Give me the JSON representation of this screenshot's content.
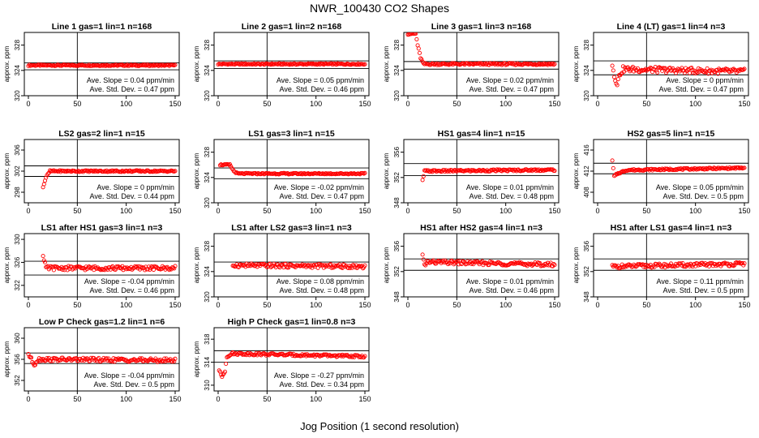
{
  "page": {
    "title": "NWR_100430  CO2 Shapes",
    "xlabel": "Jog Position (1 second resolution)"
  },
  "chart_data": [
    {
      "type": "scatter",
      "title": "Line 1 gas=1 lin=1 n=168",
      "ylabel": "approx. ppm",
      "xlim": [
        0,
        150
      ],
      "ylim": [
        320,
        330
      ],
      "yticks": [
        320,
        324,
        328
      ],
      "xticks": [
        0,
        50,
        100,
        150
      ],
      "hlines": [
        325.2,
        324.1
      ],
      "vline": 50,
      "slope_text": "Ave. Slope = 0.04 ppm/min",
      "std_text": "Ave. Std. Dev. = 0.47 ppm",
      "trace": [
        [
          0,
          324.8
        ],
        [
          150,
          324.8
        ]
      ],
      "start": 0,
      "noise": 0.1
    },
    {
      "type": "scatter",
      "title": "Line 2 gas=1 lin=2 n=168",
      "ylabel": "approx. ppm",
      "xlim": [
        0,
        150
      ],
      "ylim": [
        320,
        330
      ],
      "yticks": [
        320,
        324,
        328
      ],
      "xticks": [
        0,
        50,
        100,
        150
      ],
      "hlines": [
        325.5,
        324.3
      ],
      "vline": 50,
      "slope_text": "Ave. Slope = 0.05 ppm/min",
      "std_text": "Ave. Std. Dev. = 0.46 ppm",
      "trace": [
        [
          0,
          325.0
        ],
        [
          150,
          325.0
        ]
      ],
      "start": 0,
      "noise": 0.1
    },
    {
      "type": "scatter",
      "title": "Line 3 gas=1 lin=3 n=168",
      "ylabel": "approx. ppm",
      "xlim": [
        0,
        150
      ],
      "ylim": [
        320,
        330
      ],
      "yticks": [
        320,
        324,
        328
      ],
      "xticks": [
        0,
        50,
        100,
        150
      ],
      "hlines": [
        325.4,
        324.2
      ],
      "vline": 50,
      "slope_text": "Ave. Slope = 0.02 ppm/min",
      "std_text": "Ave. Std. Dev. = 0.47 ppm",
      "trace": [
        [
          0,
          329.8
        ],
        [
          8,
          329.8
        ],
        [
          10,
          328.0
        ],
        [
          13,
          326.0
        ],
        [
          16,
          325.0
        ],
        [
          150,
          325.0
        ]
      ],
      "start": 0,
      "noise": 0.15
    },
    {
      "type": "scatter",
      "title": "Line 4 (LT) gas=1 lin=4 n=3",
      "ylabel": "approx. ppm",
      "xlim": [
        0,
        150
      ],
      "ylim": [
        320,
        330
      ],
      "yticks": [
        320,
        324,
        328
      ],
      "xticks": [
        0,
        50,
        100,
        150
      ],
      "hlines": [
        325.5,
        323.3
      ],
      "vline": 50,
      "slope_text": "Ave. Slope = 0 ppm/min",
      "std_text": "Ave. Std. Dev. = 0.47 ppm",
      "trace": [
        [
          15,
          325.0
        ],
        [
          17,
          323.0
        ],
        [
          20,
          322.0
        ],
        [
          23,
          323.5
        ],
        [
          26,
          324.2
        ],
        [
          150,
          323.8
        ]
      ],
      "start": 15,
      "noise": 0.45
    },
    {
      "type": "scatter",
      "title": "LS2 gas=2 lin=1 n=15",
      "ylabel": "approx. ppm",
      "xlim": [
        0,
        150
      ],
      "ylim": [
        296,
        308
      ],
      "yticks": [
        298,
        302,
        306
      ],
      "xticks": [
        0,
        50,
        100,
        150
      ],
      "hlines": [
        303.0,
        301.0
      ],
      "vline": 50,
      "slope_text": "Ave. Slope = 0 ppm/min",
      "std_text": "Ave. Std. Dev. = 0.44 ppm",
      "trace": [
        [
          15,
          299.0
        ],
        [
          18,
          300.8
        ],
        [
          22,
          302.0
        ],
        [
          150,
          302.0
        ]
      ],
      "start": 15,
      "noise": 0.15
    },
    {
      "type": "scatter",
      "title": "LS1 gas=3 lin=1 n=15",
      "ylabel": "approx. ppm",
      "xlim": [
        0,
        150
      ],
      "ylim": [
        320,
        330
      ],
      "yticks": [
        320,
        324,
        328
      ],
      "xticks": [
        0,
        50,
        100,
        150
      ],
      "hlines": [
        325.5,
        323.8
      ],
      "vline": 50,
      "slope_text": "Ave. Slope = -0.02 ppm/min",
      "std_text": "Ave. Std. Dev. = 0.47 ppm",
      "trace": [
        [
          2,
          326.0
        ],
        [
          12,
          326.0
        ],
        [
          16,
          325.0
        ],
        [
          20,
          324.6
        ],
        [
          150,
          324.6
        ]
      ],
      "start": 2,
      "noise": 0.1
    },
    {
      "type": "scatter",
      "title": "HS1 gas=4 lin=1 n=15",
      "ylabel": "approx. ppm",
      "xlim": [
        0,
        150
      ],
      "ylim": [
        348,
        358
      ],
      "yticks": [
        348,
        352,
        356
      ],
      "xticks": [
        0,
        50,
        100,
        150
      ],
      "hlines": [
        354.2,
        352.3
      ],
      "vline": 50,
      "slope_text": "Ave. Slope = 0.01 ppm/min",
      "std_text": "Ave. Std. Dev. = 0.48 ppm",
      "trace": [
        [
          15,
          351.5
        ],
        [
          17,
          353.0
        ],
        [
          150,
          353.2
        ]
      ],
      "start": 15,
      "noise": 0.15
    },
    {
      "type": "scatter",
      "title": "HS2 gas=5 lin=1 n=15",
      "ylabel": "approx. ppm",
      "xlim": [
        0,
        150
      ],
      "ylim": [
        406,
        418
      ],
      "yticks": [
        408,
        412,
        416
      ],
      "xticks": [
        0,
        50,
        100,
        150
      ],
      "hlines": [
        413.5,
        411.5
      ],
      "vline": 50,
      "slope_text": "Ave. Slope = 0.05 ppm/min",
      "std_text": "Ave. Std. Dev. = 0.5 ppm",
      "trace": [
        [
          15,
          414.0
        ],
        [
          17,
          411.0
        ],
        [
          20,
          411.5
        ],
        [
          30,
          412.2
        ],
        [
          150,
          412.6
        ]
      ],
      "start": 15,
      "noise": 0.15
    },
    {
      "type": "scatter",
      "title": "LS1 after HS1 gas=3 lin=1 n=3",
      "ylabel": "approx. ppm",
      "xlim": [
        0,
        150
      ],
      "ylim": [
        320,
        331
      ],
      "yticks": [
        322,
        326,
        330
      ],
      "xticks": [
        0,
        50,
        100,
        150
      ],
      "hlines": [
        326.2,
        323.8
      ],
      "vline": 50,
      "slope_text": "Ave. Slope = -0.04 ppm/min",
      "std_text": "Ave. Std. Dev. = 0.46 ppm",
      "trace": [
        [
          15,
          327.0
        ],
        [
          18,
          325.0
        ],
        [
          150,
          325.0
        ]
      ],
      "start": 15,
      "noise": 0.35
    },
    {
      "type": "scatter",
      "title": "LS1 after LS2 gas=3 lin=1 n=3",
      "ylabel": "approx. ppm",
      "xlim": [
        0,
        150
      ],
      "ylim": [
        320,
        330
      ],
      "yticks": [
        320,
        324,
        328
      ],
      "xticks": [
        0,
        50,
        100,
        150
      ],
      "hlines": [
        325.5,
        323.3
      ],
      "vline": 50,
      "slope_text": "Ave. Slope = 0.08 ppm/min",
      "std_text": "Ave. Std. Dev. = 0.48 ppm",
      "trace": [
        [
          15,
          325.0
        ],
        [
          150,
          324.8
        ]
      ],
      "start": 15,
      "noise": 0.3
    },
    {
      "type": "scatter",
      "title": "HS1 after HS2 gas=4 lin=1 n=3",
      "ylabel": "approx. ppm",
      "xlim": [
        0,
        150
      ],
      "ylim": [
        348,
        358
      ],
      "yticks": [
        348,
        352,
        356
      ],
      "xticks": [
        0,
        50,
        100,
        150
      ],
      "hlines": [
        354.0,
        352.2
      ],
      "vline": 50,
      "slope_text": "Ave. Slope = 0.01 ppm/min",
      "std_text": "Ave. Std. Dev. = 0.46 ppm",
      "trace": [
        [
          15,
          354.5
        ],
        [
          17,
          353.0
        ],
        [
          20,
          353.5
        ],
        [
          150,
          353.1
        ]
      ],
      "start": 15,
      "noise": 0.3
    },
    {
      "type": "scatter",
      "title": "HS1 after LS1 gas=4 lin=1 n=3",
      "ylabel": "approx. ppm",
      "xlim": [
        0,
        150
      ],
      "ylim": [
        348,
        358
      ],
      "yticks": [
        348,
        352,
        356
      ],
      "xticks": [
        0,
        50,
        100,
        150
      ],
      "hlines": [
        354.0,
        352.2
      ],
      "vline": 50,
      "slope_text": "Ave. Slope = 0.11 ppm/min",
      "std_text": "Ave. Std. Dev. = 0.5 ppm",
      "trace": [
        [
          15,
          352.8
        ],
        [
          150,
          353.2
        ]
      ],
      "start": 15,
      "noise": 0.3
    },
    {
      "type": "scatter",
      "title": "Low P Check gas=1.2 lin=1 n=6",
      "ylabel": "approx. ppm",
      "xlim": [
        0,
        150
      ],
      "ylim": [
        350,
        362
      ],
      "yticks": [
        352,
        356,
        360
      ],
      "xticks": [
        0,
        50,
        100,
        150
      ],
      "hlines": [
        357.2,
        355.2
      ],
      "vline": 50,
      "slope_text": "Ave. Slope = -0.04 ppm/min",
      "std_text": "Ave. Std. Dev. = 0.5 ppm",
      "trace": [
        [
          0,
          357.0
        ],
        [
          3,
          356.0
        ],
        [
          6,
          355.0
        ],
        [
          10,
          356.0
        ],
        [
          150,
          355.8
        ]
      ],
      "start": 0,
      "noise": 0.35
    },
    {
      "type": "scatter",
      "title": "High P Check gas=1 lin=0.8 n=3",
      "ylabel": "approx. ppm",
      "xlim": [
        0,
        150
      ],
      "ylim": [
        309,
        320
      ],
      "yticks": [
        310,
        314,
        318
      ],
      "xticks": [
        0,
        50,
        100,
        150
      ],
      "hlines": [
        316.0,
        314.0
      ],
      "vline": 50,
      "slope_text": "Ave. Slope = -0.27 ppm/min",
      "std_text": "Ave. Std. Dev. = 0.34 ppm",
      "trace": [
        [
          1,
          312.5
        ],
        [
          4,
          311.5
        ],
        [
          7,
          312.5
        ],
        [
          9,
          315.0
        ],
        [
          14,
          315.5
        ],
        [
          150,
          315.0
        ]
      ],
      "start": 1,
      "noise": 0.2
    }
  ]
}
